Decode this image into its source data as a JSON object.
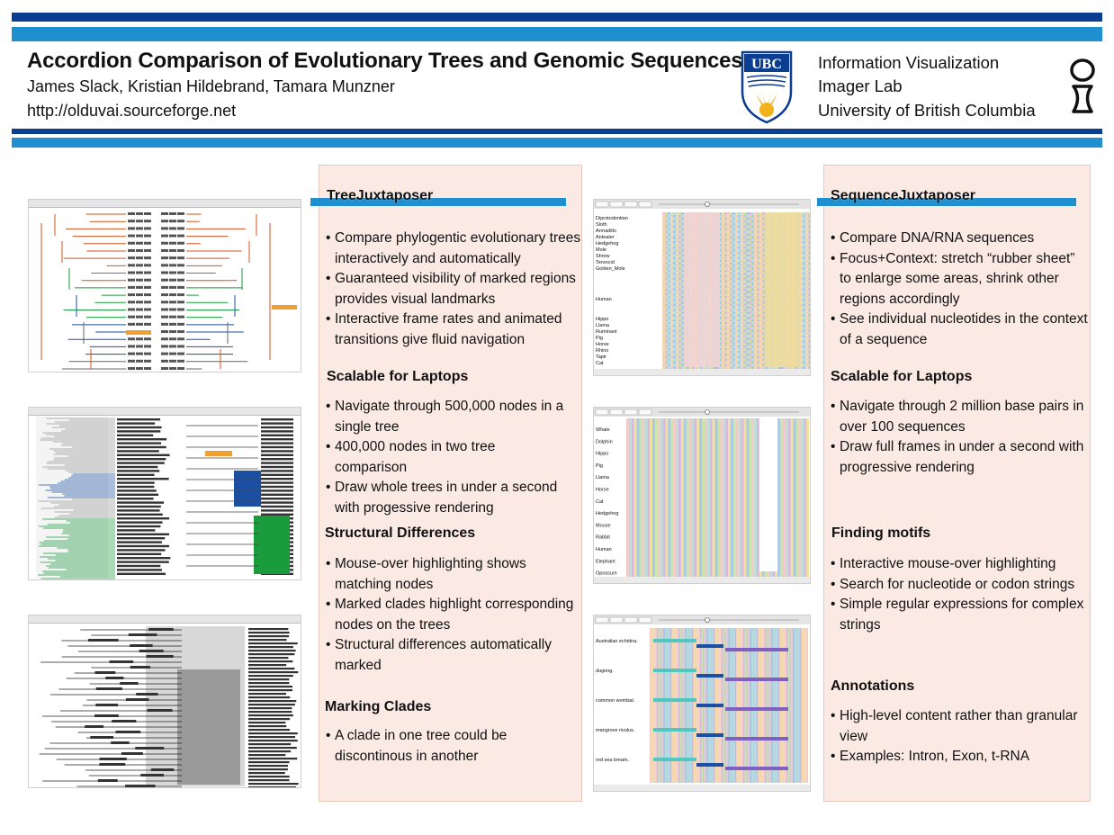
{
  "header": {
    "title": "Accordion Comparison of Evolutionary Trees and Genomic Sequences",
    "authors": "James Slack, Kristian Hildebrand, Tamara Munzner",
    "url": "http://olduvai.sourceforge.net",
    "logo_text": "UBC",
    "institution": [
      "Information Visualization",
      "Imager Lab",
      "University of British Columbia"
    ]
  },
  "colors": {
    "dark_blue": "#0b3d91",
    "light_blue": "#1f8fd0",
    "panel_bg": "#fbeae3",
    "crest_gold": "#f2b21c"
  },
  "tree_panel": {
    "sections": [
      {
        "heading": "TreeJuxtaposer",
        "bullets": [
          "Compare phylogentic evolutionary trees interactively and automatically",
          "Guaranteed visibility of marked regions provides visual landmarks",
          "Interactive frame rates and animated transitions give fluid navigation"
        ]
      },
      {
        "heading": "Scalable for Laptops",
        "bullets": [
          "Navigate through 500,000 nodes in a single tree",
          "400,000 nodes in two tree comparison",
          "Draw whole trees in under a second with progessive rendering"
        ]
      },
      {
        "heading": "Structural Differences",
        "bullets": [
          "Mouse-over highlighting shows matching nodes",
          "Marked clades highlight corresponding nodes on the trees",
          "Structural differences automatically marked"
        ]
      },
      {
        "heading": "Marking Clades",
        "bullets": [
          "A clade in one tree could be discontinous in another"
        ]
      }
    ]
  },
  "sequence_panel": {
    "sections": [
      {
        "heading": "SequenceJuxtaposer",
        "bullets": [
          "Compare DNA/RNA sequences",
          "Focus+Context: stretch “rubber sheet” to enlarge some areas, shrink other regions accordingly",
          "See individual nucleotides in the context of a sequence"
        ]
      },
      {
        "heading": "Scalable for Laptops",
        "bullets": [
          "Navigate through 2 million base pairs in over 100 sequences",
          "Draw full frames in under a second with progressive rendering"
        ]
      },
      {
        "heading": "Finding motifs",
        "bullets": [
          "Interactive mouse-over highlighting",
          "Search for nucleotide or codon strings",
          "Simple regular expressions for complex strings"
        ]
      },
      {
        "heading": "Annotations",
        "bullets": [
          "High-level content rather than granular view",
          "Examples: Intron, Exon, t-RNA"
        ]
      }
    ]
  },
  "screenshots": {
    "seq1_labels": [
      "Diprotodontian",
      "Sloth",
      "Armadillo",
      "Anteater",
      "Hedgehog",
      "Mole",
      "Shrew",
      "Tenrecid",
      "Golden_Mole",
      "Human",
      "Hippo",
      "Llama",
      "Ruminant",
      "Pig",
      "Horse",
      "Rhino",
      "Tapir",
      "Cat"
    ],
    "seq2_labels": [
      "Whale",
      "Dolphin",
      "Hippo",
      "Pig",
      "Llama",
      "Horse",
      "Cat",
      "Hedgehog",
      "Mouse",
      "Rabbit",
      "Human",
      "Elephant",
      "Opossum"
    ],
    "seq3_labels": [
      "Australian echidna.",
      "dugong.",
      "common wombat.",
      "mangrove rivulus.",
      "red sea bream."
    ]
  }
}
